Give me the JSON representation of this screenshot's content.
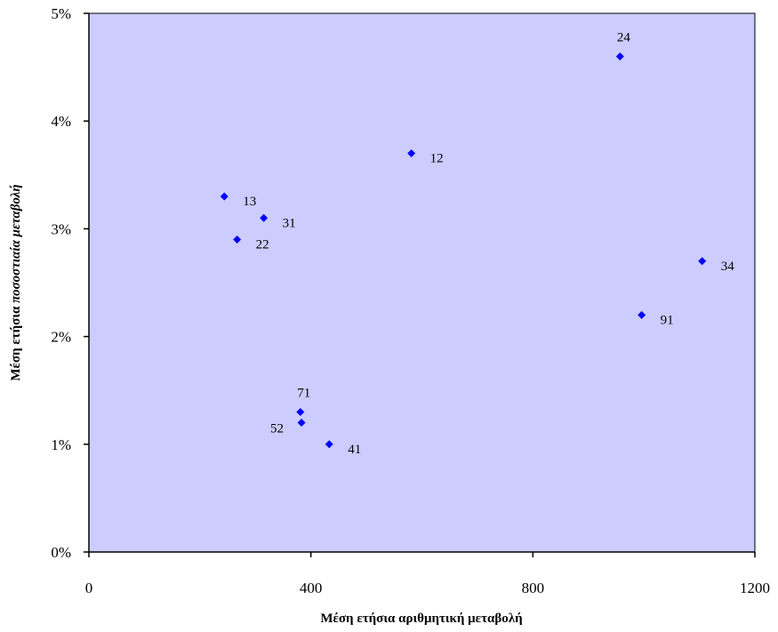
{
  "chart_data": {
    "type": "scatter",
    "title": "",
    "xlabel": "Μέση ετήσια αριθμητική μεταβολή",
    "ylabel_regular": "Μέση ετήσια ",
    "ylabel_italic": "ποσοστιαία μεταβολή",
    "xlim": [
      0,
      1200
    ],
    "ylim": [
      0,
      5
    ],
    "x_ticks": [
      0,
      400,
      800,
      1200
    ],
    "x_tick_labels": [
      "0",
      "400",
      "800",
      "1200"
    ],
    "y_ticks": [
      0,
      1,
      2,
      3,
      4,
      5
    ],
    "y_tick_labels": [
      "0%",
      "1%",
      "2%",
      "3%",
      "4%",
      "5%"
    ],
    "grid": false,
    "plot_background": "#ccccff",
    "marker_color": "#0000ff",
    "points": [
      {
        "label": "24",
        "x": 957,
        "y": 4.6,
        "label_pos": "above"
      },
      {
        "label": "12",
        "x": 581,
        "y": 3.7,
        "label_pos": "right"
      },
      {
        "label": "13",
        "x": 244,
        "y": 3.3,
        "label_pos": "right"
      },
      {
        "label": "31",
        "x": 315,
        "y": 3.1,
        "label_pos": "right"
      },
      {
        "label": "22",
        "x": 267,
        "y": 2.9,
        "label_pos": "right"
      },
      {
        "label": "34",
        "x": 1105,
        "y": 2.7,
        "label_pos": "right"
      },
      {
        "label": "91",
        "x": 996,
        "y": 2.2,
        "label_pos": "right"
      },
      {
        "label": "71",
        "x": 381,
        "y": 1.3,
        "label_pos": "above"
      },
      {
        "label": "52",
        "x": 383,
        "y": 1.2,
        "label_pos": "left"
      },
      {
        "label": "41",
        "x": 433,
        "y": 1.0,
        "label_pos": "right"
      }
    ]
  }
}
